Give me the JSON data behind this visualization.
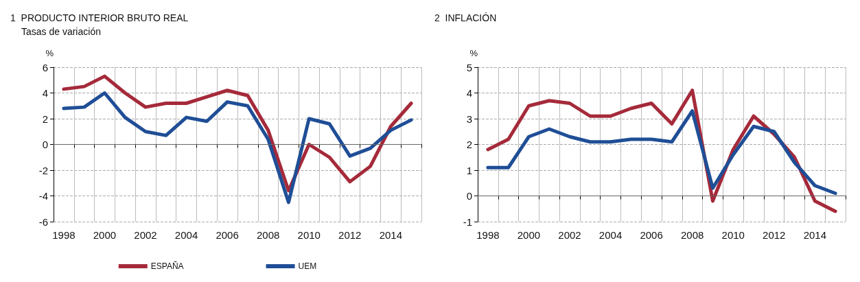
{
  "chart_data": [
    {
      "type": "line",
      "title": "1  PRODUCTO INTERIOR BRUTO REAL",
      "subtitle": "Tasas de variación",
      "ylabel": "%",
      "categories": [
        "1998",
        null,
        "2000",
        null,
        "2002",
        null,
        "2004",
        null,
        "2006",
        null,
        "2008",
        null,
        "2010",
        null,
        "2012",
        null,
        "2014",
        null
      ],
      "series": [
        {
          "name": "ESPAÑA",
          "color": "#a52a3a",
          "values": [
            4.3,
            4.5,
            5.3,
            4.0,
            2.9,
            3.2,
            3.2,
            3.7,
            4.2,
            3.8,
            1.1,
            -3.6,
            0.0,
            -1.0,
            -2.9,
            -1.7,
            1.4,
            3.2
          ]
        },
        {
          "name": "UEM",
          "color": "#1f4e96",
          "values": [
            2.8,
            2.9,
            4.0,
            2.1,
            1.0,
            0.7,
            2.1,
            1.8,
            3.3,
            3.0,
            0.4,
            -4.5,
            2.0,
            1.6,
            -0.9,
            -0.3,
            1.1,
            1.9
          ]
        }
      ],
      "ylim": [
        -6,
        6
      ],
      "yticks": [
        -6,
        -4,
        -2,
        0,
        2,
        4,
        6
      ],
      "grid": true,
      "legend": "bottom",
      "marker": "none",
      "line_style": "solid",
      "ref_lines": [
        {
          "axis": "y",
          "value": 0,
          "color": "#666666"
        }
      ]
    },
    {
      "type": "line",
      "title": "2  INFLACIÓN",
      "ylabel": "%",
      "categories": [
        "1998",
        null,
        "2000",
        null,
        "2002",
        null,
        "2004",
        null,
        "2006",
        null,
        "2008",
        null,
        "2010",
        null,
        "2012",
        null,
        "2014",
        null
      ],
      "series": [
        {
          "color": "#a52a3a",
          "values": [
            1.8,
            2.2,
            3.5,
            3.7,
            3.6,
            3.1,
            3.1,
            3.4,
            3.6,
            2.8,
            4.1,
            -0.2,
            1.8,
            3.1,
            2.4,
            1.5,
            -0.2,
            -0.6
          ]
        },
        {
          "color": "#1f4e96",
          "values": [
            1.1,
            1.1,
            2.3,
            2.6,
            2.3,
            2.1,
            2.1,
            2.2,
            2.2,
            2.1,
            3.3,
            0.3,
            1.6,
            2.7,
            2.5,
            1.3,
            0.4,
            0.1
          ]
        }
      ],
      "ylim": [
        -1,
        5
      ],
      "yticks": [
        -1,
        0,
        1,
        2,
        3,
        4,
        5
      ],
      "grid": true,
      "marker": "none",
      "line_style": "solid",
      "ref_lines": [
        {
          "axis": "y",
          "value": 0,
          "color": "#666666"
        }
      ]
    }
  ]
}
